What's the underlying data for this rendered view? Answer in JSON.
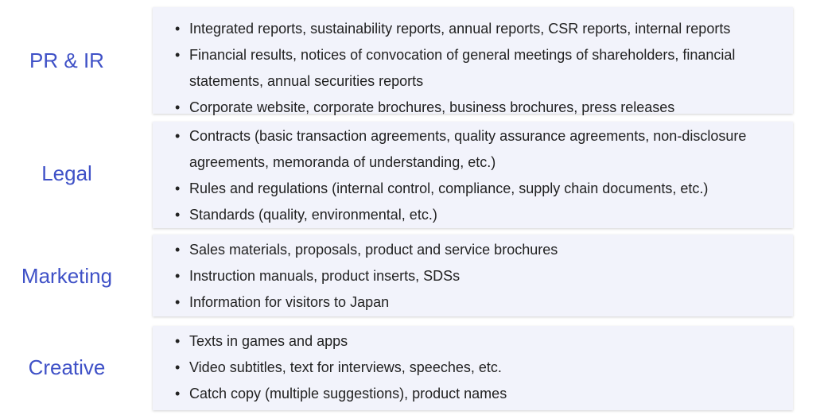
{
  "categories": [
    {
      "label": "PR & IR",
      "items": [
        "Integrated reports, sustainability reports, annual reports, CSR reports, internal reports",
        "Financial results, notices of convocation of general meetings of shareholders, financial statements, annual securities reports",
        "Corporate website, corporate brochures, business brochures, press releases"
      ]
    },
    {
      "label": "Legal",
      "items": [
        "Contracts (basic transaction agreements, quality assurance agreements, non-disclosure agreements, memoranda of understanding, etc.)",
        "Rules and regulations (internal control, compliance, supply chain documents, etc.)",
        "Standards (quality, environmental, etc.)"
      ]
    },
    {
      "label": "Marketing",
      "items": [
        "Sales materials, proposals, product and service brochures",
        "Instruction manuals, product inserts, SDSs",
        "Information for visitors to Japan"
      ]
    },
    {
      "label": "Creative",
      "items": [
        "Texts in games and apps",
        "Video subtitles, text for interviews, speeches, etc.",
        "Catch copy (multiple suggestions), product names"
      ]
    }
  ],
  "bullet": "•",
  "colors": {
    "label": "#3f51c7",
    "card_background": "#f2f3fb",
    "text": "#222222"
  }
}
